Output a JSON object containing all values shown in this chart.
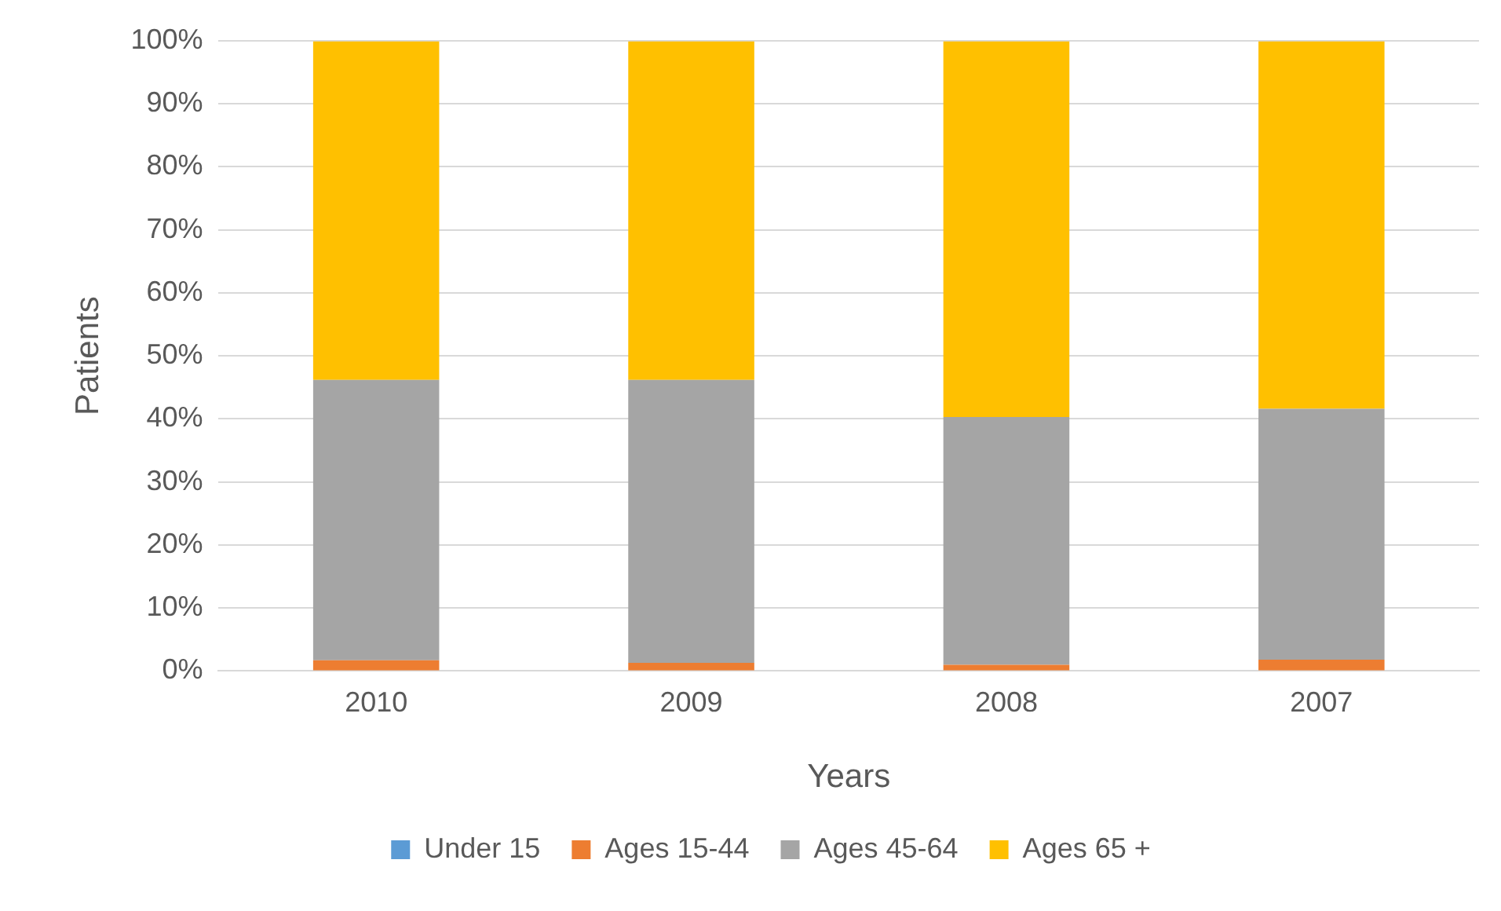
{
  "chart_data": {
    "type": "bar",
    "stacked": true,
    "xlabel": "Years",
    "ylabel": "Patients",
    "categories": [
      "2010",
      "2009",
      "2008",
      "2007"
    ],
    "series": [
      {
        "name": "Under 15",
        "color": "#5b9bd5",
        "values": [
          null,
          null,
          null,
          null
        ]
      },
      {
        "name": "Ages 15-44",
        "color": "#ed7d31",
        "values": [
          1.7,
          1.3,
          1.0,
          1.8
        ]
      },
      {
        "name": "Ages 45-64",
        "color": "#a5a5a5",
        "values": [
          44.5,
          44.9,
          39.3,
          39.8
        ]
      },
      {
        "name": "Ages 65 +",
        "color": "#ffc000",
        "values": [
          53.7,
          53.7,
          59.6,
          58.3
        ]
      }
    ],
    "ylim": [
      0,
      100
    ],
    "yticks": [
      {
        "value": 0,
        "label": "0%"
      },
      {
        "value": 10,
        "label": "10%"
      },
      {
        "value": 20,
        "label": "20%"
      },
      {
        "value": 30,
        "label": "30%"
      },
      {
        "value": 40,
        "label": "40%"
      },
      {
        "value": 50,
        "label": "50%"
      },
      {
        "value": 60,
        "label": "60%"
      },
      {
        "value": 70,
        "label": "70%"
      },
      {
        "value": 80,
        "label": "80%"
      },
      {
        "value": 90,
        "label": "90%"
      },
      {
        "value": 100,
        "label": "100%"
      }
    ],
    "grid": "y",
    "legend": "bottom"
  }
}
